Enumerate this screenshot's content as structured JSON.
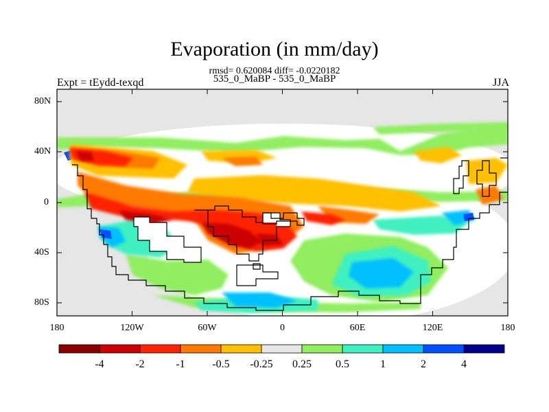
{
  "title": "Evaporation (in mm/day)",
  "stats": "rmsd= 0.620084 diff= -0.0220182",
  "subtitle": "535_0_MaBP - 535_0_MaBP",
  "expt_label": "Expt = tEydd-texqd",
  "season": "JJA",
  "axes": {
    "x_ticks": [
      "180",
      "120W",
      "60W",
      "0",
      "60E",
      "120E",
      "180"
    ],
    "y_ticks": [
      "80N",
      "40N",
      "0",
      "40S",
      "80S"
    ]
  },
  "colorbar": {
    "labels": [
      "-4",
      "-2",
      "-1",
      "-0.5",
      "-0.25",
      "0.25",
      "0.5",
      "1",
      "2",
      "4"
    ],
    "colors": [
      "#8b0000",
      "#cc0000",
      "#ff2200",
      "#ff7a00",
      "#ffc000",
      "#e6e6e6",
      "#90ee60",
      "#40f0c0",
      "#00c0ff",
      "#0050ff",
      "#00008b"
    ]
  },
  "colors": {
    "background": "#e6e6e6",
    "coastline": "#000000"
  }
}
